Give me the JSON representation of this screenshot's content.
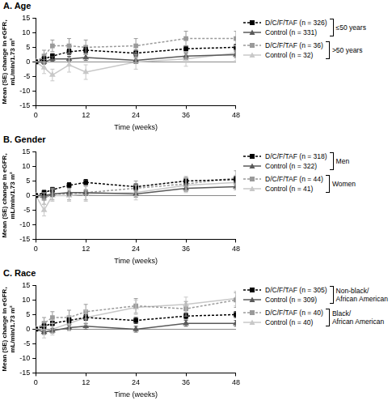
{
  "chart_data": [
    {
      "type": "line",
      "title": "A. Age",
      "x_label": "Time (weeks)",
      "y_label": [
        "Mean (SE) change in eGFR,",
        "mL/min/1.73 m²"
      ],
      "x": [
        0,
        2,
        4,
        8,
        12,
        24,
        36,
        48
      ],
      "xlim": [
        0,
        48
      ],
      "xticks": [
        0,
        12,
        24,
        36,
        48
      ],
      "ylim": [
        -15,
        15
      ],
      "yticks": [
        -15,
        -10,
        -5,
        0,
        5,
        10,
        15
      ],
      "grid": false,
      "legend": "right",
      "series": [
        {
          "name": "D/C/F/TAF (n = 326)",
          "group": [
            "≤50 years"
          ],
          "color": "#000000",
          "line_style": "dashed",
          "marker": "square",
          "values": [
            0,
            1,
            2,
            3.5,
            4,
            3,
            4.5,
            5
          ],
          "errors": [
            0,
            0.8,
            0.8,
            0.9,
            1,
            1,
            1,
            1
          ]
        },
        {
          "name": "Control (n = 331)",
          "group": [
            "≤50 years"
          ],
          "color": "#5a5a5a",
          "line_style": "solid",
          "marker": "triangle",
          "values": [
            0,
            0,
            1,
            1,
            1.5,
            0.5,
            2,
            2.5
          ],
          "errors": [
            0,
            0.8,
            0.8,
            0.9,
            1,
            1,
            1,
            1
          ]
        },
        {
          "name": "D/C/F/TAF (n = 36)",
          "group": [
            ">50 years"
          ],
          "color": "#9a9a9a",
          "line_style": "dashed",
          "marker": "square",
          "values": [
            0,
            2,
            5.5,
            5.5,
            5,
            5.5,
            8,
            8
          ],
          "errors": [
            0,
            2,
            2,
            2.5,
            2.5,
            2.5,
            2.5,
            2.5
          ]
        },
        {
          "name": "Control (n = 32)",
          "group": [
            ">50 years"
          ],
          "color": "#c8c8c8",
          "line_style": "solid",
          "marker": "triangle",
          "values": [
            0,
            -2,
            -4.5,
            -1,
            -3.5,
            0,
            1,
            3
          ],
          "errors": [
            0,
            2,
            2,
            2.5,
            2.5,
            2.5,
            2.5,
            2.5
          ]
        }
      ]
    },
    {
      "type": "line",
      "title": "B. Gender",
      "x_label": "Time (weeks)",
      "y_label": [
        "Mean (SE) change in eGFR,",
        "mL/min/1.73 m²"
      ],
      "x": [
        0,
        2,
        4,
        8,
        12,
        24,
        36,
        48
      ],
      "xlim": [
        0,
        48
      ],
      "xticks": [
        0,
        12,
        24,
        36,
        48
      ],
      "ylim": [
        -15,
        15
      ],
      "yticks": [
        -15,
        -10,
        -5,
        0,
        5,
        10,
        15
      ],
      "grid": false,
      "legend": "right",
      "series": [
        {
          "name": "D/C/F/TAF (n = 318)",
          "group": [
            "Men"
          ],
          "color": "#000000",
          "line_style": "dashed",
          "marker": "square",
          "values": [
            0,
            1,
            2,
            3.5,
            4.5,
            3,
            5,
            5.5
          ],
          "errors": [
            0,
            0.8,
            0.8,
            0.9,
            1,
            1,
            1,
            1
          ]
        },
        {
          "name": "Control (n = 322)",
          "group": [
            "Men"
          ],
          "color": "#5a5a5a",
          "line_style": "solid",
          "marker": "triangle",
          "values": [
            0,
            0,
            0.5,
            1,
            1,
            0.5,
            2.5,
            3
          ],
          "errors": [
            0,
            0.8,
            0.8,
            0.9,
            1,
            1,
            1,
            1
          ]
        },
        {
          "name": "D/C/F/TAF (n = 44)",
          "group": [
            "Women"
          ],
          "color": "#9a9a9a",
          "line_style": "dashed",
          "marker": "square",
          "values": [
            0,
            -1,
            0.5,
            0.5,
            1,
            2.5,
            4,
            6
          ],
          "errors": [
            0,
            2,
            2,
            2,
            2.5,
            2.5,
            2.5,
            2.5
          ]
        },
        {
          "name": "Control (n = 41)",
          "group": [
            "Women"
          ],
          "color": "#c8c8c8",
          "line_style": "solid",
          "marker": "triangle",
          "values": [
            0,
            -5,
            0,
            0,
            0.5,
            1,
            3.5,
            4.5
          ],
          "errors": [
            0,
            2,
            2,
            2,
            2.5,
            2.5,
            2.5,
            2.5
          ]
        }
      ]
    },
    {
      "type": "line",
      "title": "C. Race",
      "x_label": "Time (weeks)",
      "y_label": [
        "Mean (SE) change in eGFR,",
        "mL/min/1.73 m²"
      ],
      "x": [
        0,
        2,
        4,
        8,
        12,
        24,
        36,
        48
      ],
      "xlim": [
        0,
        48
      ],
      "xticks": [
        0,
        12,
        24,
        36,
        48
      ],
      "ylim": [
        -15,
        15
      ],
      "yticks": [
        -15,
        -10,
        -5,
        0,
        5,
        10,
        15
      ],
      "grid": false,
      "legend": "right",
      "series": [
        {
          "name": "D/C/F/TAF (n = 305)",
          "group": [
            "Non-black/",
            "African American"
          ],
          "color": "#000000",
          "line_style": "dashed",
          "marker": "square",
          "values": [
            0,
            1,
            2,
            3,
            4,
            3,
            4.5,
            5
          ],
          "errors": [
            0,
            0.8,
            0.8,
            0.9,
            1,
            1,
            1,
            1
          ]
        },
        {
          "name": "Control (n = 309)",
          "group": [
            "Non-black/",
            "African American"
          ],
          "color": "#5a5a5a",
          "line_style": "solid",
          "marker": "triangle",
          "values": [
            0,
            -1,
            -0.5,
            0.5,
            1,
            0,
            2,
            2
          ],
          "errors": [
            0,
            0.8,
            0.8,
            0.9,
            1,
            1,
            1,
            1
          ]
        },
        {
          "name": "D/C/F/TAF (n = 40)",
          "group": [
            "Black/",
            "African American"
          ],
          "color": "#9a9a9a",
          "line_style": "dashed",
          "marker": "square",
          "values": [
            0,
            2,
            4,
            4,
            6,
            8,
            7,
            10
          ],
          "errors": [
            0,
            2,
            2,
            2.5,
            2.5,
            2.5,
            2.5,
            2.5
          ]
        },
        {
          "name": "Control (n = 40)",
          "group": [
            "Black/",
            "African American"
          ],
          "color": "#c8c8c8",
          "line_style": "solid",
          "marker": "triangle",
          "values": [
            0,
            -1,
            0,
            2,
            4,
            7.5,
            8.5,
            10.5
          ],
          "errors": [
            0,
            2,
            2,
            2.5,
            2.5,
            2.5,
            2.5,
            2.5
          ]
        }
      ]
    }
  ]
}
